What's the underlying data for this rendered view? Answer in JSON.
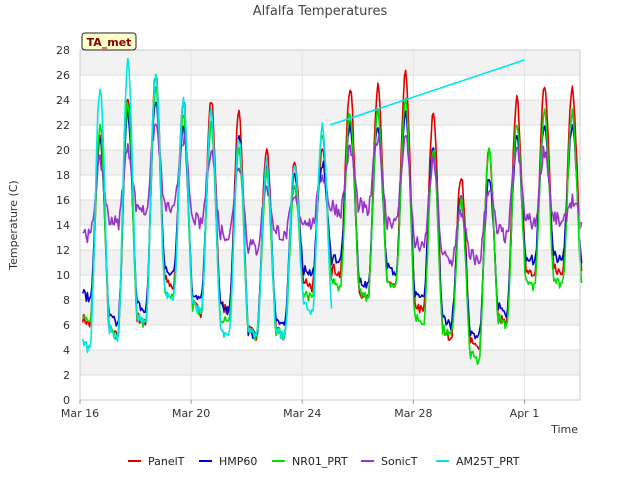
{
  "chart_data": {
    "type": "line",
    "title": "Alfalfa Temperatures",
    "xlabel": "Time",
    "ylabel": "Temperature (C)",
    "badge": "TA_met",
    "ylim": [
      0,
      28
    ],
    "yticks": [
      0,
      2,
      4,
      6,
      8,
      10,
      12,
      14,
      16,
      18,
      20,
      22,
      24,
      26,
      28
    ],
    "xlim": [
      "2024-03-16",
      "2024-04-03"
    ],
    "xticks": [
      {
        "label": "Mar 16",
        "date": "2024-03-16"
      },
      {
        "label": "Mar 20",
        "date": "2024-03-20"
      },
      {
        "label": "Mar 24",
        "date": "2024-03-24"
      },
      {
        "label": "Mar 28",
        "date": "2024-03-28"
      },
      {
        "label": "Apr 1",
        "date": "2024-04-01"
      }
    ],
    "grid": true,
    "legend_position": "bottom",
    "days": [
      "Mar 16",
      "Mar 17",
      "Mar 18",
      "Mar 19",
      "Mar 20",
      "Mar 21",
      "Mar 22",
      "Mar 23",
      "Mar 24",
      "Mar 25",
      "Mar 26",
      "Mar 27",
      "Mar 28",
      "Mar 29",
      "Mar 30",
      "Mar 31",
      "Apr 1",
      "Apr 2"
    ],
    "series": [
      {
        "name": "PanelT",
        "color": "#e00000",
        "daily_max": [
          21,
          24,
          26,
          24,
          24,
          23,
          20,
          19,
          20,
          25,
          25,
          26,
          23,
          18,
          20,
          24,
          25,
          25
        ],
        "daily_min": [
          6,
          5,
          6,
          9,
          7,
          7,
          5,
          5,
          9,
          10,
          8,
          9,
          7,
          5,
          4,
          6,
          10,
          10
        ]
      },
      {
        "name": "HMP60",
        "color": "#0000cc",
        "daily_max": [
          21,
          23,
          24,
          22,
          22,
          21,
          19,
          18,
          19,
          22,
          22,
          23,
          20,
          16,
          18,
          21,
          22,
          22
        ],
        "daily_min": [
          8,
          6,
          7,
          10,
          8,
          7,
          5,
          6,
          10,
          11,
          9,
          10,
          8,
          6,
          5,
          7,
          11,
          11
        ]
      },
      {
        "name": "NR01_PRT",
        "color": "#00dd00",
        "daily_max": [
          22,
          24,
          25,
          23,
          22,
          20,
          18,
          17,
          21,
          23,
          23,
          24,
          20,
          16,
          20,
          22,
          23,
          23
        ],
        "daily_min": [
          6,
          5,
          6,
          8,
          7,
          6,
          5,
          5,
          8,
          9,
          8,
          9,
          6,
          5,
          3,
          6,
          9,
          9
        ]
      },
      {
        "name": "SonicT",
        "color": "#9933cc",
        "daily_max": [
          19,
          20,
          22,
          21,
          20,
          19,
          17,
          16,
          18,
          20,
          21,
          21,
          19,
          15,
          17,
          20,
          20,
          16
        ],
        "daily_min": [
          13,
          14,
          15,
          15,
          14,
          13,
          12,
          13,
          14,
          15,
          15,
          14,
          12,
          11,
          11,
          13,
          14,
          14
        ]
      },
      {
        "name": "AM25T_PRT",
        "color": "#00e5e5",
        "daily_max": [
          25,
          27,
          26,
          24,
          23,
          21,
          19,
          19,
          22
        ],
        "daily_min": [
          4,
          5,
          6,
          8,
          7,
          5,
          5,
          5,
          7
        ],
        "gap_segment": {
          "from": {
            "date": "2024-03-25",
            "y": 22
          },
          "to": {
            "date": "2024-04-01",
            "y": 27.2
          }
        }
      }
    ]
  }
}
